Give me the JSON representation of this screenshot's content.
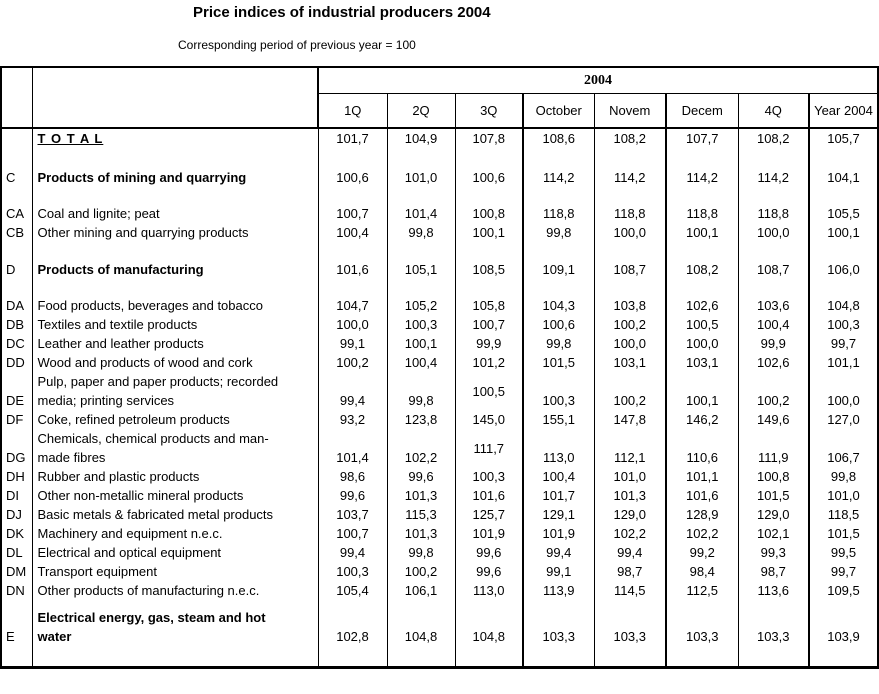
{
  "title": "Price indices of industrial producers 2004",
  "subtitle": "Corresponding period of previous year = 100",
  "table": {
    "year_header": "2004",
    "columns": [
      "1Q",
      "2Q",
      "3Q",
      "October",
      "Novem",
      "Decem",
      "4Q",
      "Year 2004"
    ],
    "rows": [
      {
        "code": "",
        "name": "T O T A L",
        "style": "total",
        "valign": "top",
        "h": 20,
        "values": [
          "101,7",
          "104,9",
          "107,8",
          "108,6",
          "108,2",
          "107,7",
          "108,2",
          "105,7"
        ]
      },
      {
        "spacer": true,
        "h": 18
      },
      {
        "code": "C",
        "name": "Products of mining and quarrying",
        "style": "bold",
        "valign": "mid",
        "h": 22,
        "values": [
          "100,6",
          "101,0",
          "100,6",
          "114,2",
          "114,2",
          "114,2",
          "114,2",
          "104,1"
        ]
      },
      {
        "spacer": true,
        "h": 16
      },
      {
        "code": "CA",
        "name": "Coal and lignite; peat",
        "h": 19,
        "values": [
          "100,7",
          "101,4",
          "100,8",
          "118,8",
          "118,8",
          "118,8",
          "118,8",
          "105,5"
        ]
      },
      {
        "code": "CB",
        "name": "Other mining and quarrying products",
        "h": 19,
        "values": [
          "100,4",
          "99,8",
          "100,1",
          "99,8",
          "100,0",
          "100,1",
          "100,0",
          "100,1"
        ]
      },
      {
        "spacer": true,
        "h": 16
      },
      {
        "code": "D",
        "name": "Products of manufacturing",
        "style": "bold",
        "valign": "mid",
        "h": 22,
        "values": [
          "101,6",
          "105,1",
          "108,5",
          "109,1",
          "108,7",
          "108,2",
          "108,7",
          "106,0"
        ]
      },
      {
        "spacer": true,
        "h": 16
      },
      {
        "code": "DA",
        "name": "Food products, beverages and tobacco",
        "h": 19,
        "values": [
          "104,7",
          "105,2",
          "105,8",
          "104,3",
          "103,8",
          "102,6",
          "103,6",
          "104,8"
        ]
      },
      {
        "code": "DB",
        "name": "Textiles and textile products",
        "h": 19,
        "values": [
          "100,0",
          "100,3",
          "100,7",
          "100,6",
          "100,2",
          "100,5",
          "100,4",
          "100,3"
        ]
      },
      {
        "code": "DC",
        "name": "Leather and leather products",
        "h": 19,
        "values": [
          "99,1",
          "100,1",
          "99,9",
          "99,8",
          "100,0",
          "100,0",
          "99,9",
          "99,7"
        ]
      },
      {
        "code": "DD",
        "name": "Wood and products of wood and cork",
        "h": 19,
        "values": [
          "100,2",
          "100,4",
          "101,2",
          "101,5",
          "103,1",
          "103,1",
          "102,6",
          "101,1"
        ]
      },
      {
        "code": "DE",
        "name": "Pulp, paper and paper products; recorded\nmedia; printing services",
        "h": 38,
        "mid_value_index": 2,
        "values": [
          "99,4",
          "99,8",
          "100,5",
          "100,3",
          "100,2",
          "100,1",
          "100,2",
          "100,0"
        ]
      },
      {
        "code": "DF",
        "name": "Coke, refined petroleum products",
        "h": 19,
        "values": [
          "93,2",
          "123,8",
          "145,0",
          "155,1",
          "147,8",
          "146,2",
          "149,6",
          "127,0"
        ]
      },
      {
        "code": "DG",
        "name": "Chemicals, chemical products and man-\nmade fibres",
        "h": 38,
        "mid_value_index": 2,
        "values": [
          "101,4",
          "102,2",
          "111,7",
          "113,0",
          "112,1",
          "110,6",
          "111,9",
          "106,7"
        ]
      },
      {
        "code": "DH",
        "name": "Rubber and plastic products",
        "h": 19,
        "values": [
          "98,6",
          "99,6",
          "100,3",
          "100,4",
          "101,0",
          "101,1",
          "100,8",
          "99,8"
        ]
      },
      {
        "code": "DI",
        "name": "Other non-metallic mineral products",
        "h": 19,
        "values": [
          "99,6",
          "101,3",
          "101,6",
          "101,7",
          "101,3",
          "101,6",
          "101,5",
          "101,0"
        ]
      },
      {
        "code": "DJ",
        "name": "Basic metals & fabricated metal products",
        "h": 19,
        "values": [
          "103,7",
          "115,3",
          "125,7",
          "129,1",
          "129,0",
          "128,9",
          "129,0",
          "118,5"
        ]
      },
      {
        "code": "DK",
        "name": "Machinery and equipment n.e.c.",
        "h": 19,
        "values": [
          "100,7",
          "101,3",
          "101,9",
          "101,9",
          "102,2",
          "102,2",
          "102,1",
          "101,5"
        ]
      },
      {
        "code": "DL",
        "name": "Electrical and optical equipment",
        "h": 19,
        "values": [
          "99,4",
          "99,8",
          "99,6",
          "99,4",
          "99,4",
          "99,2",
          "99,3",
          "99,5"
        ]
      },
      {
        "code": "DM",
        "name": "Transport equipment",
        "h": 19,
        "values": [
          "100,3",
          "100,2",
          "99,6",
          "99,1",
          "98,7",
          "98,4",
          "98,7",
          "99,7"
        ]
      },
      {
        "code": "DN",
        "name": "Other products of manufacturing n.e.c.",
        "h": 19,
        "values": [
          "105,4",
          "106,1",
          "113,0",
          "113,9",
          "114,5",
          "112,5",
          "113,6",
          "109,5"
        ]
      },
      {
        "spacer": true,
        "h": 8
      },
      {
        "code": "E",
        "name": "Electrical energy, gas, steam and hot\nwater",
        "style": "bold",
        "pad": true,
        "h": 57,
        "values": [
          "102,8",
          "104,8",
          "104,8",
          "103,3",
          "103,3",
          "103,3",
          "103,3",
          "103,9"
        ]
      }
    ]
  }
}
